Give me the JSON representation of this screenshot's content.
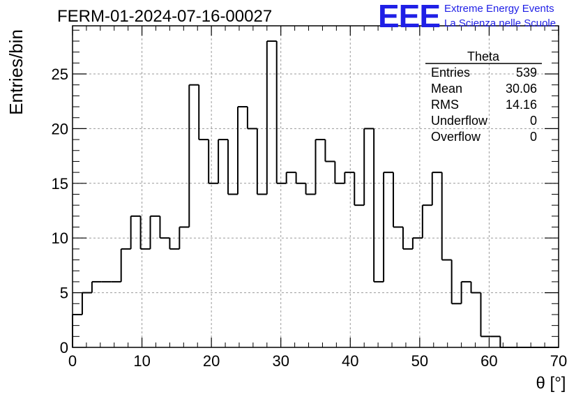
{
  "header": {
    "title": "FERM-01-2024-07-16-00027",
    "logo_text": "EEE",
    "logo_line1": "Extreme Energy Events",
    "logo_line2": "La Scienza nelle Scuole",
    "logo_color": "#1f1fe6"
  },
  "stats": {
    "name": "Theta",
    "rows": [
      {
        "label": "Entries",
        "value": "539"
      },
      {
        "label": "Mean",
        "value": "30.06"
      },
      {
        "label": "RMS",
        "value": "14.16"
      },
      {
        "label": "Underflow",
        "value": "0"
      },
      {
        "label": "Overflow",
        "value": "0"
      }
    ]
  },
  "chart_data": {
    "type": "bar",
    "style": "step-histogram",
    "title": "FERM-01-2024-07-16-00027",
    "xlabel": "θ [°]",
    "ylabel": "Entries/bin",
    "xlim": [
      0,
      70
    ],
    "ylim": [
      0,
      29.4
    ],
    "bin_width": 1.4,
    "bin_edges_start": 0,
    "values": [
      3,
      5,
      6,
      6,
      6,
      9,
      12,
      9,
      12,
      10,
      9,
      11,
      24,
      19,
      15,
      19,
      14,
      22,
      20,
      14,
      28,
      15,
      16,
      15,
      14,
      19,
      17,
      15,
      16,
      13,
      20,
      6,
      16,
      11,
      9,
      10,
      13,
      16,
      8,
      4,
      6,
      5,
      1,
      1,
      0,
      0,
      0,
      0,
      0,
      0
    ],
    "x_ticks": [
      "0",
      "10",
      "20",
      "30",
      "40",
      "50",
      "60",
      "70"
    ],
    "y_ticks": [
      "0",
      "5",
      "10",
      "15",
      "20",
      "25"
    ],
    "grid": true,
    "line_color": "#000000"
  }
}
